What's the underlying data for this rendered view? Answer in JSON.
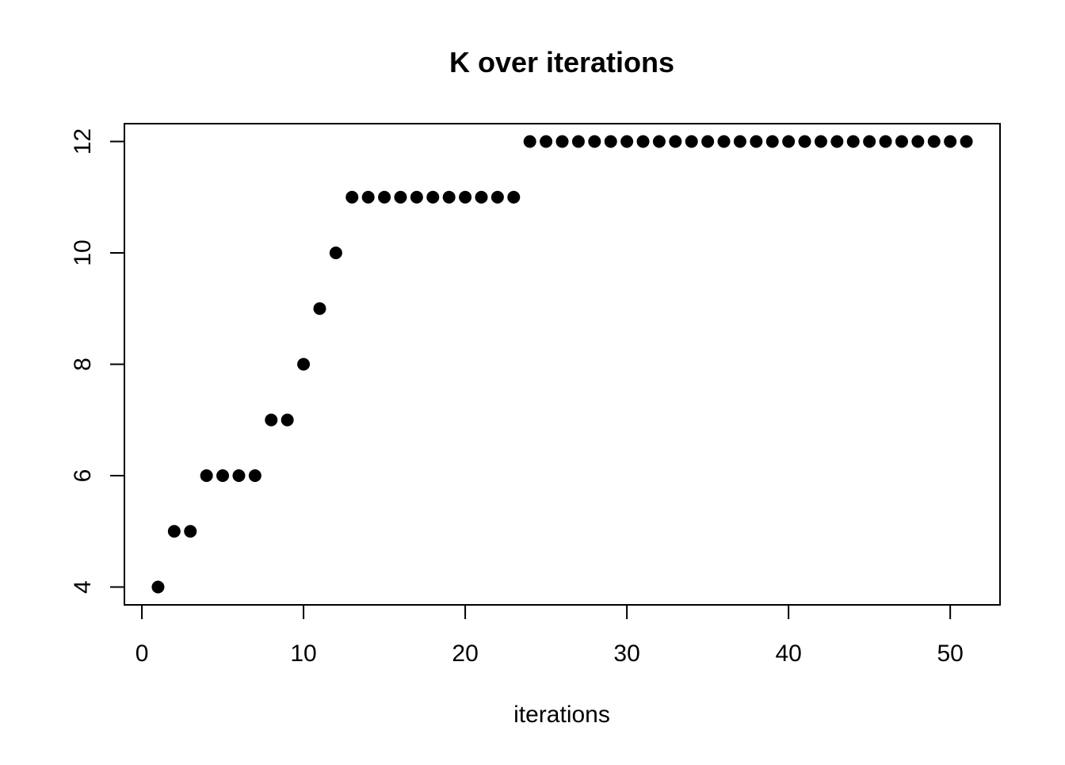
{
  "chart_data": {
    "type": "scatter",
    "title": "K over iterations",
    "xlabel": "iterations",
    "ylabel": "",
    "x": [
      1,
      2,
      3,
      4,
      5,
      6,
      7,
      8,
      9,
      10,
      11,
      12,
      13,
      14,
      15,
      16,
      17,
      18,
      19,
      20,
      21,
      22,
      23,
      24,
      25,
      26,
      27,
      28,
      29,
      30,
      31,
      32,
      33,
      34,
      35,
      36,
      37,
      38,
      39,
      40,
      41,
      42,
      43,
      44,
      45,
      46,
      47,
      48,
      49,
      50,
      51
    ],
    "y": [
      4,
      5,
      5,
      6,
      6,
      6,
      6,
      7,
      7,
      8,
      9,
      10,
      11,
      11,
      11,
      11,
      11,
      11,
      11,
      11,
      11,
      11,
      11,
      12,
      12,
      12,
      12,
      12,
      12,
      12,
      12,
      12,
      12,
      12,
      12,
      12,
      12,
      12,
      12,
      12,
      12,
      12,
      12,
      12,
      12,
      12,
      12,
      12,
      12,
      12,
      12
    ],
    "x_ticks": [
      0,
      10,
      20,
      30,
      40,
      50
    ],
    "y_ticks": [
      4,
      6,
      8,
      10,
      12
    ],
    "xlim": [
      -1.08,
      53.08
    ],
    "ylim": [
      3.68,
      12.32
    ],
    "grid": false,
    "legend": null,
    "point_color": "#000000",
    "axis_color": "#000000",
    "background_color": "#ffffff"
  }
}
